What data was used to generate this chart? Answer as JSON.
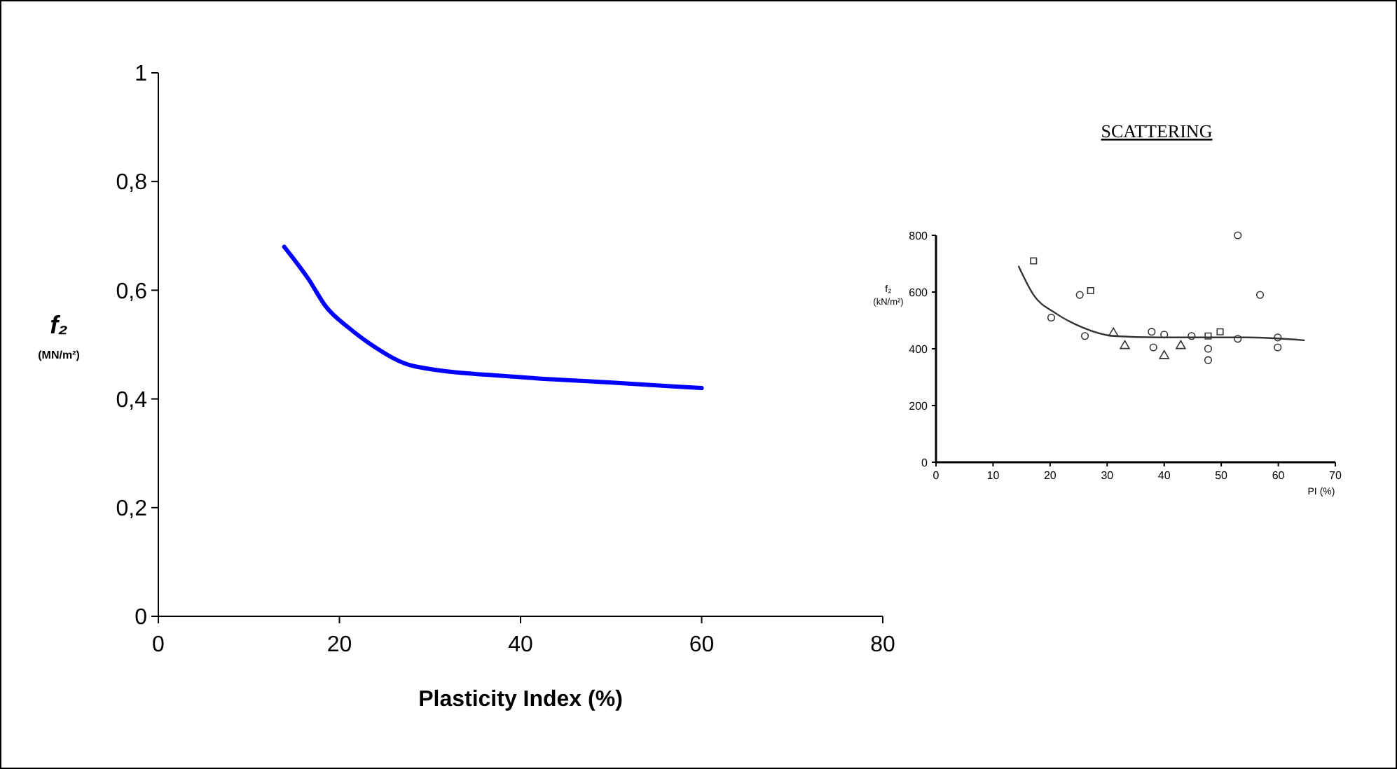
{
  "chart_data": [
    {
      "type": "line",
      "xlabel": "Plasticity Index (%)",
      "ylabel": "f₂ (MN/m²)",
      "xlim": [
        0,
        80
      ],
      "xticks": [
        0,
        20,
        40,
        60,
        80
      ],
      "ylim": [
        0,
        1
      ],
      "yticks": [
        0,
        {
          "value": 0.2,
          "label": "0,2"
        },
        {
          "value": 0.4,
          "label": "0,4"
        },
        {
          "value": 0.6,
          "label": "0,6"
        },
        {
          "value": 0.8,
          "label": "0,8"
        },
        1
      ],
      "grid": false,
      "marker": "none",
      "line_style": "solid",
      "series": [
        {
          "color": "#0000ff",
          "x": [
            13.9,
            16.6,
            18.5,
            21.1,
            23.5,
            28.3,
            40,
            50.1,
            60
          ],
          "values": [
            0.68,
            0.62,
            0.57,
            0.53,
            0.5,
            0.46,
            0.44,
            0.43,
            0.42
          ]
        }
      ]
    },
    {
      "type": "scatter",
      "title": "SCATTERING",
      "xlabel": "PI (%)",
      "ylabel": "f₂ (kN/m²)",
      "xlim": [
        0,
        70
      ],
      "xticks": [
        0,
        10,
        20,
        30,
        40,
        50,
        60,
        70
      ],
      "ylim": [
        0,
        800
      ],
      "yticks": [
        0,
        200,
        400,
        600,
        800
      ],
      "grid": false,
      "series": [
        {
          "color": "#333333",
          "marker": "circle",
          "x": [
            20.2,
            25.2,
            52.9,
            56.8,
            26.1,
            37.8,
            38.1,
            47.7,
            47.7,
            59.9,
            59.9,
            52.9,
            40,
            44.8
          ],
          "values": [
            510,
            590,
            800,
            590,
            445,
            460,
            405,
            400,
            360,
            440,
            405,
            435,
            450,
            445
          ]
        },
        {
          "color": "#333333",
          "marker": "square",
          "x": [
            17.1,
            27.1,
            47.7,
            49.8
          ],
          "values": [
            710,
            605,
            445,
            460
          ]
        },
        {
          "color": "#333333",
          "marker": "triangle",
          "x": [
            31.1,
            33.1,
            40,
            42.9
          ],
          "values": [
            455,
            410,
            375,
            410
          ]
        },
        {
          "type": "line",
          "color": "#333333",
          "marker": "none",
          "x": [
            14.5,
            17.1,
            21,
            25.7,
            31.1,
            38.9,
            54.4,
            64.5
          ],
          "values": [
            690,
            590,
            525,
            475,
            445,
            440,
            440,
            430
          ]
        }
      ]
    }
  ]
}
